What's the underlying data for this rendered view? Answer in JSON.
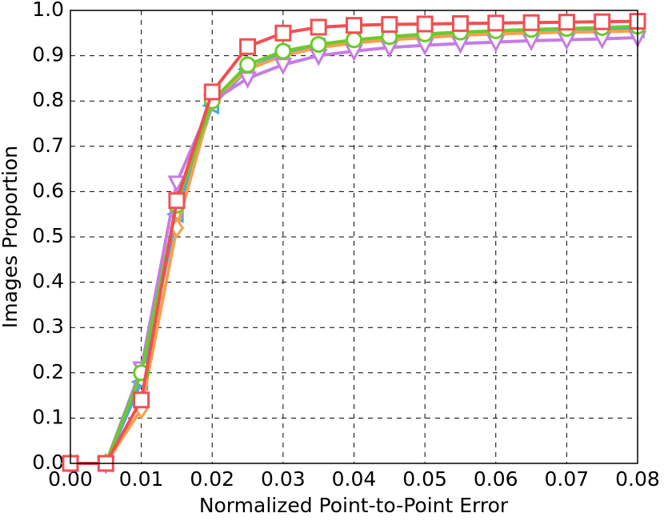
{
  "chart_data": {
    "type": "line",
    "xlabel": "Normalized Point-to-Point Error",
    "ylabel": "Images Proportion",
    "x": [
      0,
      0.005,
      0.01,
      0.015,
      0.02,
      0.025,
      0.03,
      0.035,
      0.04,
      0.045,
      0.05,
      0.055,
      0.06,
      0.065,
      0.07,
      0.075,
      0.08
    ],
    "series": [
      {
        "color": "#4aa6e6",
        "marker": "triangle-left",
        "values": [
          0,
          0,
          0.18,
          0.55,
          0.79,
          0.87,
          0.905,
          0.92,
          0.93,
          0.938,
          0.944,
          0.948,
          0.951,
          0.953,
          0.955,
          0.957,
          0.958
        ]
      },
      {
        "color": "#f7a04c",
        "marker": "diamond",
        "values": [
          0,
          0,
          0.12,
          0.52,
          0.8,
          0.87,
          0.9,
          0.918,
          0.928,
          0.935,
          0.94,
          0.945,
          0.948,
          0.95,
          0.952,
          0.953,
          0.955
        ]
      },
      {
        "color": "#c77ce2",
        "marker": "triangle-down",
        "values": [
          0,
          0,
          0.21,
          0.62,
          0.8,
          0.85,
          0.88,
          0.9,
          0.91,
          0.918,
          0.923,
          0.927,
          0.93,
          0.933,
          0.935,
          0.937,
          0.94
        ]
      },
      {
        "color": "#6acc28",
        "marker": "circle",
        "values": [
          0,
          0,
          0.2,
          0.57,
          0.8,
          0.88,
          0.91,
          0.925,
          0.935,
          0.942,
          0.948,
          0.952,
          0.955,
          0.958,
          0.96,
          0.962,
          0.965
        ]
      },
      {
        "color": "#f24e52",
        "marker": "square",
        "values": [
          0,
          0,
          0.14,
          0.58,
          0.82,
          0.92,
          0.95,
          0.963,
          0.967,
          0.969,
          0.97,
          0.971,
          0.972,
          0.973,
          0.974,
          0.975,
          0.976
        ]
      }
    ],
    "xlim": [
      0,
      0.08
    ],
    "xticks": [
      {
        "value": 0,
        "label": "0.00"
      },
      {
        "value": 0.01,
        "label": "0.01"
      },
      {
        "value": 0.02,
        "label": "0.02"
      },
      {
        "value": 0.03,
        "label": "0.03"
      },
      {
        "value": 0.04,
        "label": "0.04"
      },
      {
        "value": 0.05,
        "label": "0.05"
      },
      {
        "value": 0.06,
        "label": "0.06"
      },
      {
        "value": 0.07,
        "label": "0.07"
      },
      {
        "value": 0.08,
        "label": "0.08"
      }
    ],
    "ylim": [
      0,
      1
    ],
    "yticks": [
      {
        "value": 0,
        "label": "0.0"
      },
      0.1,
      0.2,
      0.3,
      0.4,
      0.5,
      0.6,
      0.7,
      0.8,
      0.9,
      {
        "value": 1,
        "label": "1.0"
      }
    ],
    "grid": true
  }
}
